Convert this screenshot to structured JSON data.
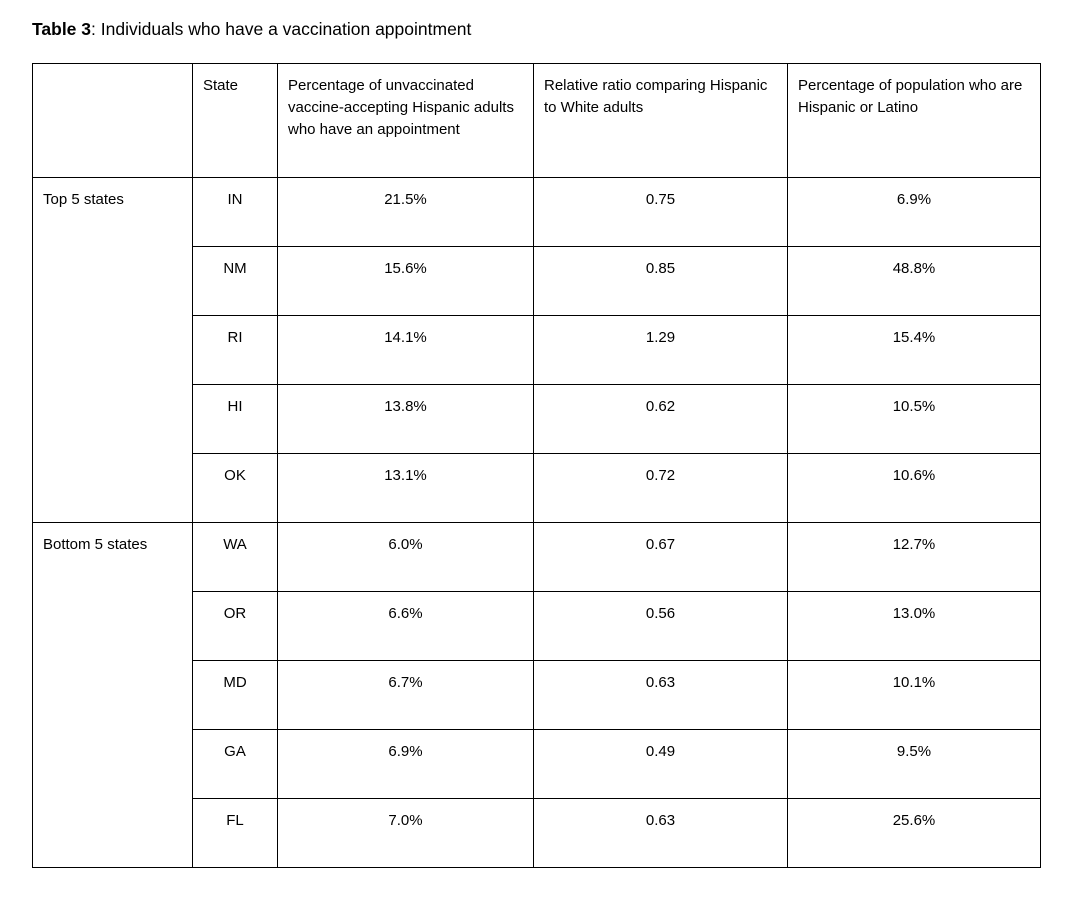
{
  "title": {
    "prefix": "Table 3",
    "rest": ": Individuals who have a vaccination appointment"
  },
  "table": {
    "headers": [
      "",
      "State",
      "Percentage of unvaccinated vaccine-accepting Hispanic adults who have an appointment",
      "Relative ratio comparing Hispanic to White adults",
      "Percentage of population who are Hispanic or Latino"
    ],
    "groups": [
      {
        "label": "Top 5 states",
        "rows": [
          [
            "IN",
            "21.5%",
            "0.75",
            "6.9%"
          ],
          [
            "NM",
            "15.6%",
            "0.85",
            "48.8%"
          ],
          [
            "RI",
            "14.1%",
            "1.29",
            "15.4%"
          ],
          [
            "HI",
            "13.8%",
            "0.62",
            "10.5%"
          ],
          [
            "OK",
            "13.1%",
            "0.72",
            "10.6%"
          ]
        ]
      },
      {
        "label": "Bottom 5 states",
        "rows": [
          [
            "WA",
            "6.0%",
            "0.67",
            "12.7%"
          ],
          [
            "OR",
            "6.6%",
            "0.56",
            "13.0%"
          ],
          [
            "MD",
            "6.7%",
            "0.63",
            "10.1%"
          ],
          [
            "GA",
            "6.9%",
            "0.49",
            "9.5%"
          ],
          [
            "FL",
            "7.0%",
            "0.63",
            "25.6%"
          ]
        ]
      }
    ]
  }
}
